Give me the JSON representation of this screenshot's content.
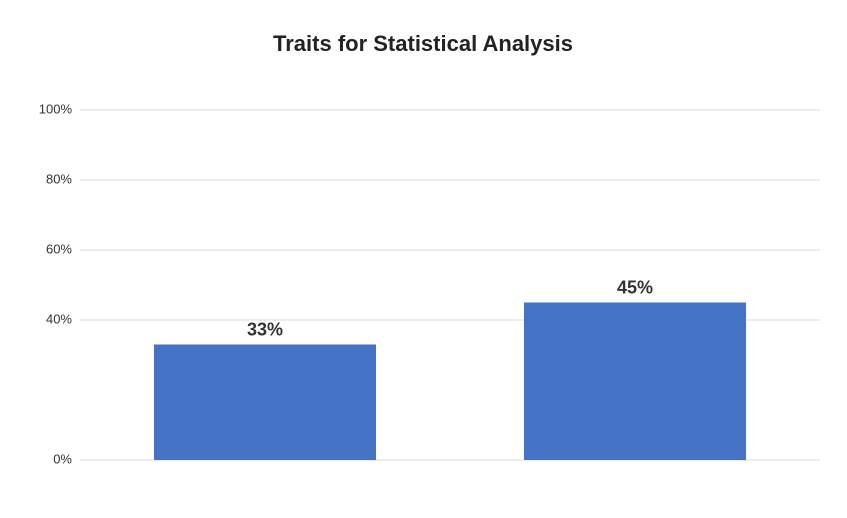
{
  "chart_data": {
    "type": "bar",
    "title": "Traits for Statistical Analysis",
    "categories": [
      null,
      null
    ],
    "values": [
      33,
      45
    ],
    "value_labels": [
      "33%",
      "45%"
    ],
    "color": "#4472c4",
    "ylim": [
      0,
      100
    ],
    "yticks": [
      {
        "value": 0,
        "label": "0%"
      },
      {
        "value": 40,
        "label": "40%"
      },
      {
        "value": 60,
        "label": "60%"
      },
      {
        "value": 80,
        "label": "80%"
      },
      {
        "value": 100,
        "label": "100%"
      }
    ],
    "grid": true
  }
}
